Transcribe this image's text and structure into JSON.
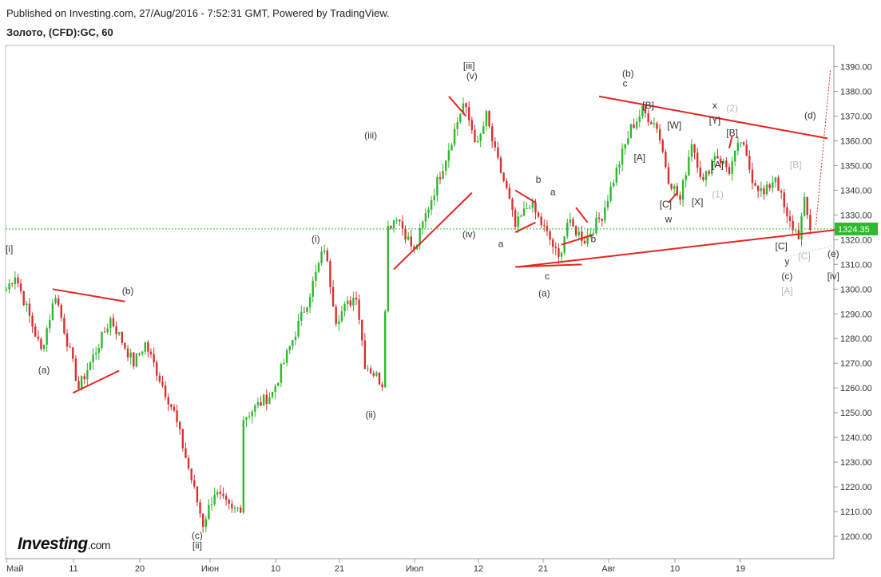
{
  "header": {
    "published": "Published on Investing.com, 27/Aug/2016 - 7:52:31 GMT, Powered by TradingView.",
    "symbol": "Золото, (CFD):GC, 60"
  },
  "logo": {
    "brand": "Investing",
    "suffix": ".com"
  },
  "colors": {
    "up": "#2eb82e",
    "down": "#d93030",
    "trendline": "#e8231f",
    "price_badge": "#2eb82e"
  },
  "chart_data": {
    "type": "candlestick",
    "title": "",
    "xlabel": "",
    "ylabel": "",
    "ylim": [
      1195,
      1395
    ],
    "y_ticks": [
      "1200.00",
      "1210.00",
      "1220.00",
      "1230.00",
      "1240.00",
      "1250.00",
      "1260.00",
      "1270.00",
      "1280.00",
      "1290.00",
      "1300.00",
      "1310.00",
      "1320.00",
      "1330.00",
      "1340.00",
      "1350.00",
      "1360.00",
      "1370.00",
      "1380.00",
      "1390.00"
    ],
    "x_ticks": [
      "Май",
      "11",
      "20",
      "Июн",
      "10",
      "21",
      "Июл",
      "12",
      "21",
      "Авг",
      "10",
      "19"
    ],
    "last_price": "1324.35",
    "price_path": [
      {
        "bar": 0,
        "price": 1300
      },
      {
        "bar": 3,
        "price": 1306
      },
      {
        "bar": 12,
        "price": 1275
      },
      {
        "bar": 17,
        "price": 1298
      },
      {
        "bar": 25,
        "price": 1260
      },
      {
        "bar": 36,
        "price": 1288
      },
      {
        "bar": 44,
        "price": 1270
      },
      {
        "bar": 48,
        "price": 1278
      },
      {
        "bar": 58,
        "price": 1250
      },
      {
        "bar": 68,
        "price": 1205
      },
      {
        "bar": 72,
        "price": 1218
      },
      {
        "bar": 78,
        "price": 1210
      },
      {
        "bar": 81,
        "price": 1212
      },
      {
        "bar": 82,
        "price": 1248
      },
      {
        "bar": 92,
        "price": 1258
      },
      {
        "bar": 104,
        "price": 1295
      },
      {
        "bar": 110,
        "price": 1317
      },
      {
        "bar": 114,
        "price": 1288
      },
      {
        "bar": 121,
        "price": 1298
      },
      {
        "bar": 124,
        "price": 1270
      },
      {
        "bar": 130,
        "price": 1262
      },
      {
        "bar": 132,
        "price": 1325
      },
      {
        "bar": 135,
        "price": 1330
      },
      {
        "bar": 141,
        "price": 1315
      },
      {
        "bar": 145,
        "price": 1330
      },
      {
        "bar": 151,
        "price": 1350
      },
      {
        "bar": 158,
        "price": 1375
      },
      {
        "bar": 163,
        "price": 1358
      },
      {
        "bar": 166,
        "price": 1370
      },
      {
        "bar": 169,
        "price": 1355
      },
      {
        "bar": 173,
        "price": 1340
      },
      {
        "bar": 176,
        "price": 1325
      },
      {
        "bar": 181,
        "price": 1335
      },
      {
        "bar": 188,
        "price": 1320
      },
      {
        "bar": 191,
        "price": 1312
      },
      {
        "bar": 194,
        "price": 1327
      },
      {
        "bar": 200,
        "price": 1320
      },
      {
        "bar": 206,
        "price": 1330
      },
      {
        "bar": 211,
        "price": 1348
      },
      {
        "bar": 216,
        "price": 1365
      },
      {
        "bar": 220,
        "price": 1372
      },
      {
        "bar": 225,
        "price": 1366
      },
      {
        "bar": 229,
        "price": 1345
      },
      {
        "bar": 233,
        "price": 1336
      },
      {
        "bar": 237,
        "price": 1360
      },
      {
        "bar": 241,
        "price": 1343
      },
      {
        "bar": 245,
        "price": 1355
      },
      {
        "bar": 250,
        "price": 1348
      },
      {
        "bar": 254,
        "price": 1360
      },
      {
        "bar": 258,
        "price": 1345
      },
      {
        "bar": 262,
        "price": 1338
      },
      {
        "bar": 266,
        "price": 1346
      },
      {
        "bar": 270,
        "price": 1328
      },
      {
        "bar": 274,
        "price": 1322
      },
      {
        "bar": 276,
        "price": 1335
      },
      {
        "bar": 278,
        "price": 1324
      }
    ],
    "trendlines": [
      {
        "from": [
          16,
          1300
        ],
        "to": [
          41,
          1295
        ]
      },
      {
        "from": [
          23,
          1258
        ],
        "to": [
          39,
          1267
        ]
      },
      {
        "from": [
          134,
          1308
        ],
        "to": [
          161,
          1339
        ]
      },
      {
        "from": [
          153,
          1378
        ],
        "to": [
          159,
          1370
        ]
      },
      {
        "from": [
          176,
          1340
        ],
        "to": [
          183,
          1335
        ]
      },
      {
        "from": [
          176,
          1323
        ],
        "to": [
          183,
          1327
        ]
      },
      {
        "from": [
          176,
          1309
        ],
        "to": [
          199,
          1310
        ]
      },
      {
        "from": [
          192,
          1318
        ],
        "to": [
          203,
          1322
        ]
      },
      {
        "from": [
          197,
          1333
        ],
        "to": [
          201,
          1327
        ]
      },
      {
        "from": [
          205,
          1378
        ],
        "to": [
          284,
          1361
        ]
      },
      {
        "from": [
          177,
          1309
        ],
        "to": [
          287,
          1324
        ]
      },
      {
        "from": [
          229,
          1335
        ],
        "to": [
          232,
          1339
        ]
      },
      {
        "from": [
          250,
          1357
        ],
        "to": [
          251,
          1362
        ]
      }
    ],
    "dotted_lines": [
      {
        "from": [
          280,
          1326
        ],
        "to": [
          285,
          1389
        ],
        "color": "#e8231f"
      },
      {
        "from": [
          270,
          1313
        ],
        "to": [
          287,
          1318
        ],
        "color": "#cccccc"
      }
    ],
    "annotations": [
      {
        "text": "[i]",
        "bar": 1,
        "price": 1315,
        "style": "dark"
      },
      {
        "text": "(a)",
        "bar": 13,
        "price": 1266,
        "style": "dark"
      },
      {
        "text": "(b)",
        "bar": 42,
        "price": 1298,
        "style": "dark"
      },
      {
        "text": "(c)",
        "bar": 66,
        "price": 1199,
        "style": "dark"
      },
      {
        "text": "[ii]",
        "bar": 66,
        "price": 1195,
        "style": "dark"
      },
      {
        "text": "(i)",
        "bar": 107,
        "price": 1319,
        "style": "dark"
      },
      {
        "text": "(iii)",
        "bar": 126,
        "price": 1361,
        "style": "dark"
      },
      {
        "text": "(ii)",
        "bar": 126,
        "price": 1248,
        "style": "dark"
      },
      {
        "text": "[iii]",
        "bar": 160,
        "price": 1389,
        "style": "dark"
      },
      {
        "text": "(v)",
        "bar": 161,
        "price": 1385,
        "style": "dark"
      },
      {
        "text": "(iv)",
        "bar": 160,
        "price": 1321,
        "style": "dark"
      },
      {
        "text": "a",
        "bar": 171,
        "price": 1317,
        "style": "dark"
      },
      {
        "text": "b",
        "bar": 184,
        "price": 1343,
        "style": "dark"
      },
      {
        "text": "a",
        "bar": 189,
        "price": 1338,
        "style": "dark"
      },
      {
        "text": "b",
        "bar": 203,
        "price": 1319,
        "style": "dark"
      },
      {
        "text": "c",
        "bar": 187,
        "price": 1304,
        "style": "dark"
      },
      {
        "text": "(a)",
        "bar": 186,
        "price": 1297,
        "style": "dark"
      },
      {
        "text": "(b)",
        "bar": 215,
        "price": 1386,
        "style": "dark"
      },
      {
        "text": "c",
        "bar": 214,
        "price": 1382,
        "style": "dark"
      },
      {
        "text": "[B]",
        "bar": 222,
        "price": 1373,
        "style": "dark"
      },
      {
        "text": "[A]",
        "bar": 219,
        "price": 1352,
        "style": "dark"
      },
      {
        "text": "[W]",
        "bar": 231,
        "price": 1365,
        "style": "dark"
      },
      {
        "text": "[C]",
        "bar": 228,
        "price": 1333,
        "style": "dark"
      },
      {
        "text": "w",
        "bar": 229,
        "price": 1327,
        "style": "dark"
      },
      {
        "text": "[X]",
        "bar": 239,
        "price": 1334,
        "style": "dark"
      },
      {
        "text": "x",
        "bar": 245,
        "price": 1373,
        "style": "dark"
      },
      {
        "text": "(2)",
        "bar": 251,
        "price": 1372,
        "style": "grey"
      },
      {
        "text": "[Y]",
        "bar": 245,
        "price": 1367,
        "style": "dark"
      },
      {
        "text": "[B]",
        "bar": 251,
        "price": 1362,
        "style": "dark"
      },
      {
        "text": "[A]",
        "bar": 246,
        "price": 1349,
        "style": "dark"
      },
      {
        "text": "(1)",
        "bar": 246,
        "price": 1337,
        "style": "grey"
      },
      {
        "text": "[B]",
        "bar": 273,
        "price": 1349,
        "style": "grey"
      },
      {
        "text": "(d)",
        "bar": 278,
        "price": 1369,
        "style": "dark"
      },
      {
        "text": "[C]",
        "bar": 268,
        "price": 1316,
        "style": "dark"
      },
      {
        "text": "[C]",
        "bar": 276,
        "price": 1312,
        "style": "grey"
      },
      {
        "text": "(e)",
        "bar": 286,
        "price": 1313,
        "style": "dark"
      },
      {
        "text": "y",
        "bar": 270,
        "price": 1310,
        "style": "dark"
      },
      {
        "text": "(c)",
        "bar": 270,
        "price": 1304,
        "style": "dark"
      },
      {
        "text": "[iv]",
        "bar": 286,
        "price": 1304,
        "style": "dark"
      },
      {
        "text": "[A]",
        "bar": 270,
        "price": 1298,
        "style": "grey"
      }
    ]
  }
}
